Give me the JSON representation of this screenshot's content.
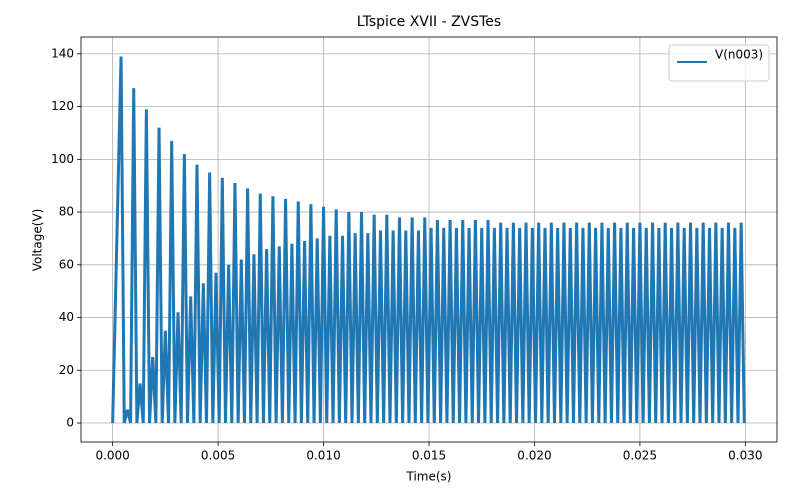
{
  "chart_data": {
    "type": "line",
    "title": "LTspice XVII - ZVSTes",
    "xlabel": "Time(s)",
    "ylabel": "Voltage(V)",
    "x": [
      0,
      0.0004,
      0.00055,
      0.0007,
      0.00085,
      0.001,
      0.00115,
      0.0013,
      0.00145,
      0.0016,
      0.00175,
      0.0019,
      0.00205,
      0.0022,
      0.00235,
      0.0025,
      0.00265,
      0.0028,
      0.00295,
      0.0031,
      0.00325,
      0.0034,
      0.00355,
      0.0037,
      0.00385,
      0.004,
      0.00415,
      0.0043,
      0.00445,
      0.0046,
      0.00475,
      0.0049,
      0.00505,
      0.0052,
      0.00535,
      0.0055,
      0.00565,
      0.0058,
      0.00595,
      0.0061,
      0.00625,
      0.0064,
      0.00655,
      0.0067,
      0.00685,
      0.007,
      0.00715,
      0.0073,
      0.00745,
      0.0076,
      0.00775,
      0.0079,
      0.00805,
      0.0082,
      0.00835,
      0.0085,
      0.00865,
      0.0088,
      0.00895,
      0.0091,
      0.00925,
      0.0094,
      0.00955,
      0.0097,
      0.00985,
      0.01,
      0.01015,
      0.0103,
      0.01045,
      0.0106,
      0.01075,
      0.0109,
      0.01105,
      0.0112,
      0.01135,
      0.0115,
      0.01165,
      0.0118,
      0.01195,
      0.0121,
      0.01225,
      0.0124,
      0.01255,
      0.0127,
      0.01285,
      0.013,
      0.01315,
      0.0133,
      0.01345,
      0.0136,
      0.01375,
      0.0139,
      0.01405,
      0.0142,
      0.01435,
      0.0145,
      0.01465,
      0.0148,
      0.01495,
      0.0151,
      0.01525,
      0.0154,
      0.01555,
      0.0157,
      0.01585,
      0.016,
      0.01615,
      0.0163,
      0.01645,
      0.0166,
      0.01675,
      0.0169,
      0.01705,
      0.0172,
      0.01735,
      0.0175,
      0.01765,
      0.0178,
      0.01795,
      0.0181,
      0.01825,
      0.0184,
      0.01855,
      0.0187,
      0.01885,
      0.019,
      0.01915,
      0.0193,
      0.01945,
      0.0196,
      0.01975,
      0.0199,
      0.02005,
      0.0202,
      0.02035,
      0.0205,
      0.02065,
      0.0208,
      0.02095,
      0.0211,
      0.02125,
      0.0214,
      0.02155,
      0.0217,
      0.02185,
      0.022,
      0.02215,
      0.0223,
      0.02245,
      0.0226,
      0.02275,
      0.0229,
      0.02305,
      0.0232,
      0.02335,
      0.0235,
      0.02365,
      0.0238,
      0.02395,
      0.0241,
      0.02425,
      0.0244,
      0.02455,
      0.0247,
      0.02485,
      0.025,
      0.02515,
      0.0253,
      0.02545,
      0.0256,
      0.02575,
      0.0259,
      0.02605,
      0.0262,
      0.02635,
      0.0265,
      0.02665,
      0.0268,
      0.02695,
      0.0271,
      0.02725,
      0.0274,
      0.02755,
      0.0277,
      0.02785,
      0.028,
      0.02815,
      0.0283,
      0.02845,
      0.0286,
      0.02875,
      0.0289,
      0.02905,
      0.0292,
      0.02935,
      0.0295,
      0.02965,
      0.0298,
      0.02995
    ],
    "series": [
      {
        "name": "V(n003)",
        "color": "#1f77b4",
        "values": [
          0,
          139,
          0,
          5,
          0,
          127,
          0,
          15,
          0,
          119,
          0,
          25,
          0,
          112,
          0,
          35,
          0,
          107,
          0,
          42,
          0,
          102,
          0,
          48,
          0,
          98,
          0,
          53,
          0,
          95,
          0,
          57,
          0,
          93,
          0,
          60,
          0,
          91,
          0,
          62,
          0,
          89,
          0,
          64,
          0,
          87,
          0,
          66,
          0,
          86,
          0,
          67,
          0,
          85,
          0,
          68,
          0,
          84,
          0,
          69,
          0,
          83,
          0,
          70,
          0,
          82,
          0,
          71,
          0,
          81,
          0,
          71,
          0,
          80,
          0,
          72,
          0,
          80,
          0,
          72,
          0,
          79,
          0,
          73,
          0,
          79,
          0,
          73,
          0,
          78,
          0,
          73,
          0,
          78,
          0,
          73,
          0,
          78,
          0,
          74,
          0,
          77,
          0,
          74,
          0,
          77,
          0,
          74,
          0,
          77,
          0,
          74,
          0,
          77,
          0,
          74,
          0,
          77,
          0,
          74,
          0,
          76,
          0,
          74,
          0,
          76,
          0,
          74,
          0,
          76,
          0,
          74,
          0,
          76,
          0,
          74,
          0,
          76,
          0,
          74,
          0,
          76,
          0,
          74,
          0,
          76,
          0,
          74,
          0,
          76,
          0,
          74,
          0,
          76,
          0,
          74,
          0,
          76,
          0,
          74,
          0,
          76,
          0,
          74,
          0,
          76,
          0,
          74,
          0,
          76,
          0,
          74,
          0,
          76,
          0,
          74,
          0,
          76,
          0,
          74,
          0,
          76,
          0,
          74,
          0,
          76,
          0,
          74,
          0,
          76,
          0,
          74,
          0,
          76,
          0,
          74,
          0,
          76,
          0
        ]
      }
    ],
    "xlim": [
      -0.0015,
      0.0315
    ],
    "xticks": [
      {
        "value": 0,
        "label": "0.000"
      },
      {
        "value": 0.005,
        "label": "0.005"
      },
      {
        "value": 0.01,
        "label": "0.010"
      },
      {
        "value": 0.015,
        "label": "0.015"
      },
      {
        "value": 0.02,
        "label": "0.020"
      },
      {
        "value": 0.025,
        "label": "0.025"
      },
      {
        "value": 0.03,
        "label": "0.030"
      }
    ],
    "ylim": [
      -7.2,
      146.4
    ],
    "yticks": [
      0,
      20,
      40,
      60,
      80,
      100,
      120,
      140
    ],
    "grid": true,
    "legend": "upper right"
  }
}
